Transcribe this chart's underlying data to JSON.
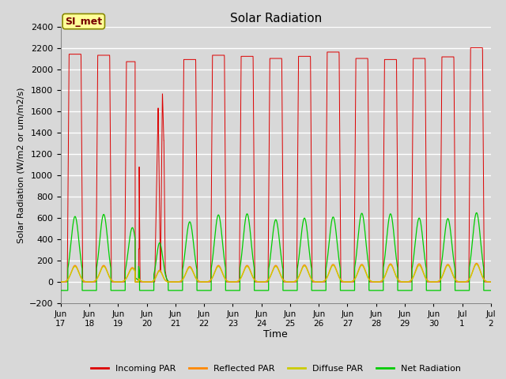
{
  "title": "Solar Radiation",
  "ylabel": "Solar Radiation (W/m2 or um/m2/s)",
  "xlabel": "Time",
  "ylim": [
    -200,
    2400
  ],
  "yticks": [
    -200,
    0,
    200,
    400,
    600,
    800,
    1000,
    1200,
    1400,
    1600,
    1800,
    2000,
    2200,
    2400
  ],
  "plot_bg_color": "#d8d8d8",
  "fig_bg_color": "#d8d8d8",
  "grid_color": "#ffffff",
  "station_label": "SI_met",
  "station_label_bg": "#ffff99",
  "station_label_border": "#888800",
  "series": {
    "incoming_par": {
      "color": "#dd0000",
      "label": "Incoming PAR"
    },
    "reflected_par": {
      "color": "#ff8800",
      "label": "Reflected PAR"
    },
    "diffuse_par": {
      "color": "#cccc00",
      "label": "Diffuse PAR"
    },
    "net_radiation": {
      "color": "#00cc00",
      "label": "Net Radiation"
    }
  },
  "tick_labels": [
    "Jun\n17",
    "Jun\n18",
    "Jun\n19",
    "Jun\n20",
    "Jun\n21",
    "Jun\n22",
    "Jun\n23",
    "Jun\n24",
    "Jun\n25",
    "Jun\n26",
    "Jun\n27",
    "Jun\n28",
    "Jun\n29",
    "Jun\n30",
    "Jul\n1",
    "Jul\n2"
  ],
  "tick_positions": [
    0,
    1,
    2,
    3,
    4,
    5,
    6,
    7,
    8,
    9,
    10,
    11,
    12,
    13,
    14,
    15
  ]
}
